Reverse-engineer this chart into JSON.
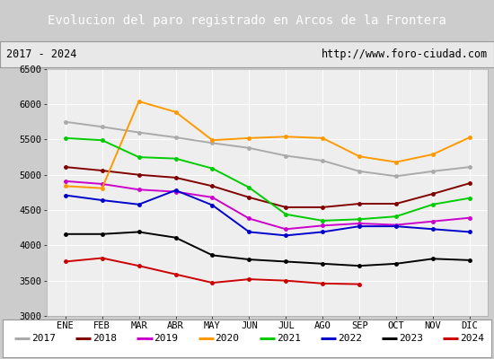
{
  "title": "Evolucion del paro registrado en Arcos de la Frontera",
  "subtitle_left": "2017 - 2024",
  "subtitle_right": "http://www.foro-ciudad.com",
  "months": [
    "ENE",
    "FEB",
    "MAR",
    "ABR",
    "MAY",
    "JUN",
    "JUL",
    "AGO",
    "SEP",
    "OCT",
    "NOV",
    "DIC"
  ],
  "series": {
    "2017": {
      "color": "#aaaaaa",
      "data": [
        5750,
        5680,
        5600,
        5530,
        5450,
        5380,
        5270,
        5200,
        5050,
        4980,
        5050,
        5110
      ]
    },
    "2018": {
      "color": "#800000",
      "data": [
        5110,
        5060,
        5000,
        4960,
        4840,
        4680,
        4540,
        4540,
        4590,
        4590,
        4730,
        4880
      ]
    },
    "2019": {
      "color": "#cc00cc",
      "data": [
        4910,
        4870,
        4790,
        4760,
        4680,
        4380,
        4230,
        4280,
        4310,
        4290,
        4340,
        4390
      ]
    },
    "2020": {
      "color": "#ff9900",
      "data": [
        4840,
        4810,
        6040,
        5890,
        5490,
        5520,
        5540,
        5520,
        5260,
        5180,
        5290,
        5530
      ]
    },
    "2021": {
      "color": "#00cc00",
      "data": [
        5520,
        5490,
        5250,
        5230,
        5090,
        4820,
        4440,
        4350,
        4370,
        4410,
        4580,
        4670
      ]
    },
    "2022": {
      "color": "#0000cc",
      "data": [
        4710,
        4640,
        4580,
        4780,
        4570,
        4190,
        4140,
        4190,
        4270,
        4270,
        4230,
        4190
      ]
    },
    "2023": {
      "color": "#000000",
      "data": [
        4160,
        4160,
        4190,
        4110,
        3860,
        3800,
        3770,
        3740,
        3710,
        3740,
        3810,
        3790
      ]
    },
    "2024": {
      "color": "#cc0000",
      "data": [
        3770,
        3820,
        3710,
        3590,
        3470,
        3520,
        3500,
        3460,
        3450,
        null,
        null,
        null
      ]
    }
  },
  "ylim": [
    3000,
    6500
  ],
  "yticks": [
    3000,
    3500,
    4000,
    4500,
    5000,
    5500,
    6000,
    6500
  ],
  "bg_title": "#4a90c4",
  "bg_subtitle": "#e8e8e8",
  "bg_plot": "#eeeeee",
  "grid_color": "#ffffff",
  "title_color": "#ffffff",
  "legend_years": [
    "2017",
    "2018",
    "2019",
    "2020",
    "2021",
    "2022",
    "2023",
    "2024"
  ]
}
